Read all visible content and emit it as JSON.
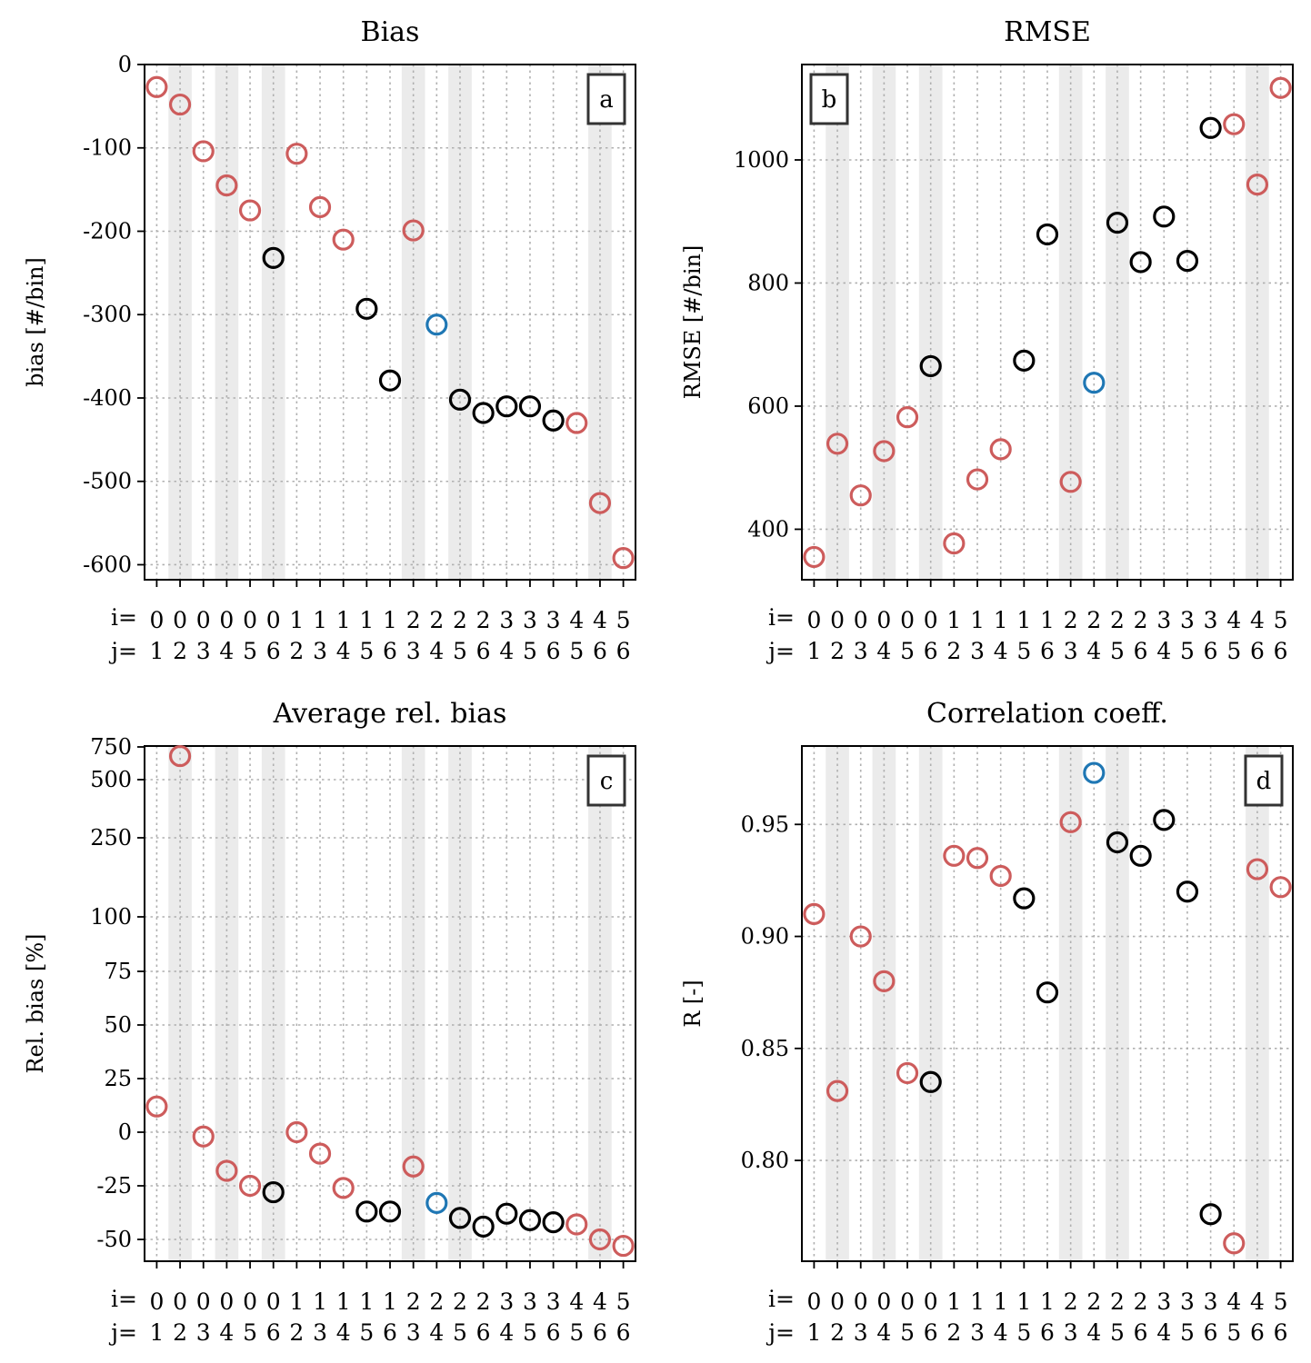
{
  "chart_data": [
    {
      "type": "scatter",
      "title": "Bias",
      "panel_label": "a",
      "ylabel": "bias [#/bin]",
      "ylim": [
        -618,
        0
      ],
      "yticks": [
        0,
        -100,
        -200,
        -300,
        -400,
        -500,
        -600
      ],
      "ytick_labels": [
        "0",
        "-100",
        "-200",
        "-300",
        "-400",
        "-500",
        "-600"
      ],
      "i_labels": [
        "0",
        "0",
        "0",
        "0",
        "0",
        "0",
        "1",
        "1",
        "1",
        "1",
        "1",
        "2",
        "2",
        "2",
        "2",
        "3",
        "3",
        "3",
        "4",
        "4",
        "5"
      ],
      "j_labels": [
        "1",
        "2",
        "3",
        "4",
        "5",
        "6",
        "2",
        "3",
        "4",
        "5",
        "6",
        "3",
        "4",
        "5",
        "6",
        "4",
        "5",
        "6",
        "5",
        "6",
        "6"
      ],
      "values": [
        -27,
        -48,
        -104,
        -145,
        -175,
        -232,
        -107,
        -171,
        -210,
        -293,
        -379,
        -199,
        -312,
        -402,
        -418,
        -410,
        -410,
        -427,
        -430,
        -526,
        -592
      ],
      "colors": [
        "red",
        "red",
        "red",
        "red",
        "red",
        "black",
        "red",
        "red",
        "red",
        "black",
        "black",
        "red",
        "blue",
        "black",
        "black",
        "black",
        "black",
        "black",
        "red",
        "red",
        "red"
      ],
      "grid": true,
      "legend": "none"
    },
    {
      "type": "scatter",
      "title": "RMSE",
      "panel_label": "b",
      "ylabel": "RMSE [#/bin]",
      "ylim": [
        318,
        1155
      ],
      "yticks": [
        400,
        600,
        800,
        1000
      ],
      "ytick_labels": [
        "400",
        "600",
        "800",
        "1000"
      ],
      "i_labels": [
        "0",
        "0",
        "0",
        "0",
        "0",
        "0",
        "1",
        "1",
        "1",
        "1",
        "1",
        "2",
        "2",
        "2",
        "2",
        "3",
        "3",
        "3",
        "4",
        "4",
        "5"
      ],
      "j_labels": [
        "1",
        "2",
        "3",
        "4",
        "5",
        "6",
        "2",
        "3",
        "4",
        "5",
        "6",
        "3",
        "4",
        "5",
        "6",
        "4",
        "5",
        "6",
        "5",
        "6",
        "6"
      ],
      "values": [
        355,
        539,
        455,
        527,
        582,
        665,
        377,
        481,
        530,
        674,
        879,
        477,
        638,
        898,
        834,
        908,
        836,
        1052,
        1058,
        960,
        1117
      ],
      "colors": [
        "red",
        "red",
        "red",
        "red",
        "red",
        "black",
        "red",
        "red",
        "red",
        "black",
        "black",
        "red",
        "blue",
        "black",
        "black",
        "black",
        "black",
        "black",
        "red",
        "red",
        "red"
      ],
      "grid": true,
      "legend": "none"
    },
    {
      "type": "scatter",
      "title": "Average rel. bias",
      "panel_label": "c",
      "ylabel": "Rel. bias [%]",
      "ylim": [
        -60,
        750
      ],
      "yticks": [
        -50,
        -25,
        0,
        25,
        50,
        75,
        100,
        250,
        500,
        750
      ],
      "ytick_labels": [
        "-50",
        "-25",
        "0",
        "25",
        "50",
        "75",
        "100",
        "250",
        "500",
        "750"
      ],
      "scale": "piecewise: linear below 100, compressed above 100",
      "i_labels": [
        "0",
        "0",
        "0",
        "0",
        "0",
        "0",
        "1",
        "1",
        "1",
        "1",
        "1",
        "2",
        "2",
        "2",
        "2",
        "3",
        "3",
        "3",
        "4",
        "4",
        "5"
      ],
      "j_labels": [
        "1",
        "2",
        "3",
        "4",
        "5",
        "6",
        "2",
        "3",
        "4",
        "5",
        "6",
        "3",
        "4",
        "5",
        "6",
        "4",
        "5",
        "6",
        "5",
        "6",
        "6"
      ],
      "values": [
        12,
        680,
        -2,
        -18,
        -25,
        -28,
        0,
        -10,
        -26,
        -37,
        -37,
        -16,
        -33,
        -40,
        -44,
        -38,
        -41,
        -42,
        -43,
        -50,
        -53
      ],
      "colors": [
        "red",
        "red",
        "red",
        "red",
        "red",
        "black",
        "red",
        "red",
        "red",
        "black",
        "black",
        "red",
        "blue",
        "black",
        "black",
        "black",
        "black",
        "black",
        "red",
        "red",
        "red"
      ],
      "grid": true,
      "legend": "none"
    },
    {
      "type": "scatter",
      "title": "Correlation coeff.",
      "panel_label": "d",
      "ylabel": "R [-]",
      "ylim": [
        0.755,
        0.985
      ],
      "yticks": [
        0.8,
        0.85,
        0.9,
        0.95
      ],
      "ytick_labels": [
        "0.80",
        "0.85",
        "0.90",
        "0.95"
      ],
      "i_labels": [
        "0",
        "0",
        "0",
        "0",
        "0",
        "0",
        "1",
        "1",
        "1",
        "1",
        "1",
        "2",
        "2",
        "2",
        "2",
        "3",
        "3",
        "3",
        "4",
        "4",
        "5"
      ],
      "j_labels": [
        "1",
        "2",
        "3",
        "4",
        "5",
        "6",
        "2",
        "3",
        "4",
        "5",
        "6",
        "3",
        "4",
        "5",
        "6",
        "4",
        "5",
        "6",
        "5",
        "6",
        "6"
      ],
      "values": [
        0.91,
        0.831,
        0.9,
        0.88,
        0.839,
        0.835,
        0.936,
        0.935,
        0.927,
        0.917,
        0.875,
        0.951,
        0.973,
        0.942,
        0.936,
        0.952,
        0.92,
        0.776,
        0.763,
        0.93,
        0.922
      ],
      "colors": [
        "red",
        "red",
        "red",
        "red",
        "red",
        "black",
        "red",
        "red",
        "red",
        "black",
        "black",
        "red",
        "blue",
        "black",
        "black",
        "black",
        "black",
        "black",
        "red",
        "red",
        "red"
      ],
      "grid": true,
      "legend": "none"
    }
  ],
  "axis_prefix": {
    "i": "i=",
    "j": "j="
  },
  "palette": {
    "red": "#cd5c5c",
    "black": "#000000",
    "blue": "#1f77b4",
    "shade": "#ebebeb",
    "grid": "#b0b0b0"
  }
}
